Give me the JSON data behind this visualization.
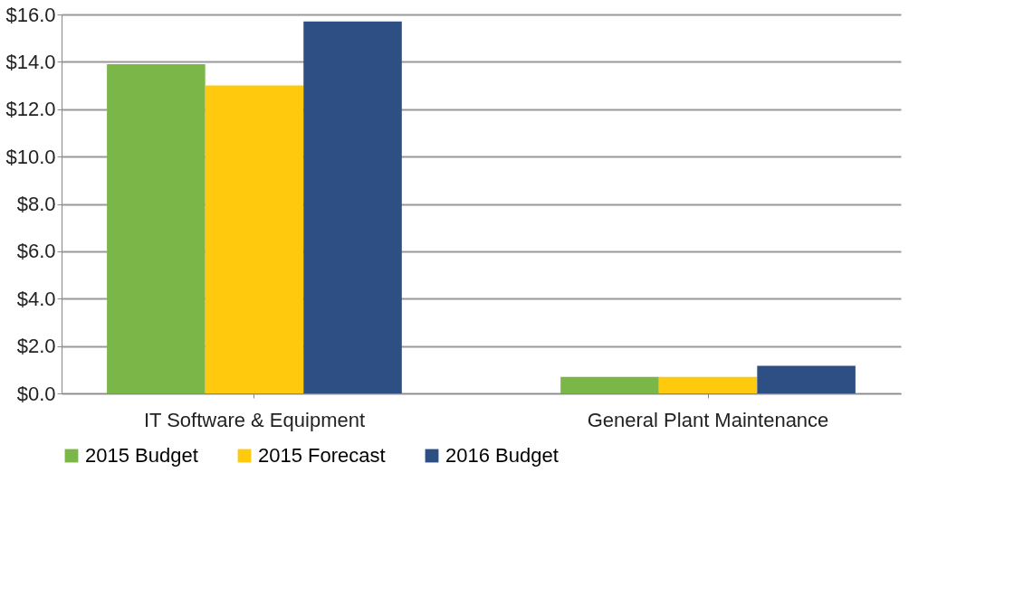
{
  "chart_data": {
    "type": "bar",
    "categories": [
      "IT Software & Equipment",
      "General Plant Maintenance"
    ],
    "series": [
      {
        "name": "2015 Budget",
        "color": "#7ab648",
        "values": [
          13.9,
          0.7
        ]
      },
      {
        "name": "2015 Forecast",
        "color": "#ffc90e",
        "values": [
          13.0,
          0.7
        ]
      },
      {
        "name": "2016 Budget",
        "color": "#2e4f84",
        "values": [
          15.7,
          1.16
        ]
      }
    ],
    "ylim": [
      0,
      16
    ],
    "yticks": [
      {
        "value": 0,
        "label": "$0.0"
      },
      {
        "value": 2,
        "label": "$2.0"
      },
      {
        "value": 4,
        "label": "$4.0"
      },
      {
        "value": 6,
        "label": "$6.0"
      },
      {
        "value": 8,
        "label": "$8.0"
      },
      {
        "value": 10,
        "label": "$10.0"
      },
      {
        "value": 12,
        "label": "$12.0"
      },
      {
        "value": 14,
        "label": "$14.0"
      },
      {
        "value": 16,
        "label": "$16.0"
      }
    ],
    "grid": "y",
    "legend": "bottom"
  }
}
